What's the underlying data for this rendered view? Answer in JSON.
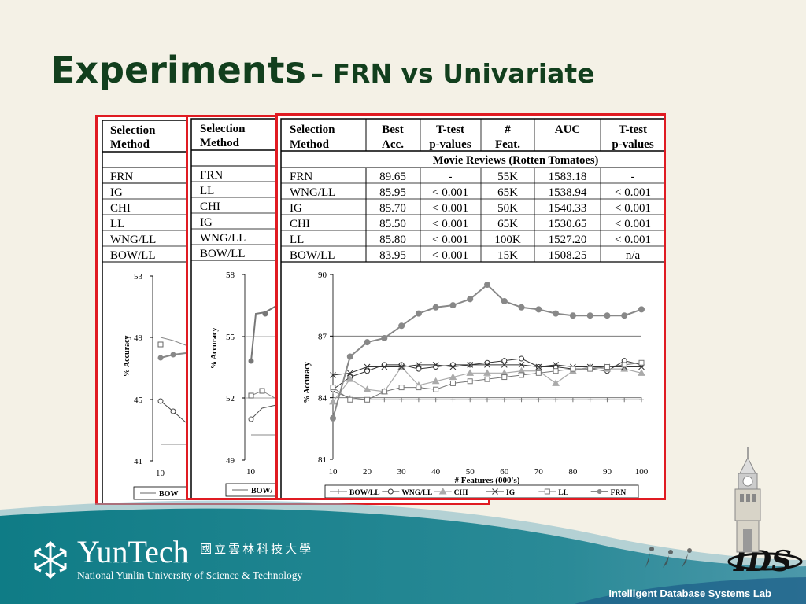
{
  "title": {
    "main": "Experiments",
    "sub": "– FRN vs Univariate"
  },
  "panel1": {
    "header": [
      "Selection",
      "Method"
    ],
    "methods": [
      "FRN",
      "IG",
      "CHI",
      "LL",
      "WNG/LL",
      "BOW/LL"
    ],
    "yticks": [
      "53",
      "49",
      "45",
      "41"
    ],
    "xtick": "10",
    "ylabel": "% Accuracy",
    "legend_first": "BOW"
  },
  "panel2": {
    "header": [
      "Selection",
      "Method"
    ],
    "methods": [
      "FRN",
      "LL",
      "CHI",
      "IG",
      "WNG/LL",
      "BOW/LL"
    ],
    "yticks": [
      "58",
      "55",
      "52",
      "49"
    ],
    "xtick": "10",
    "ylabel": "% Accuracy",
    "legend_first": "BOW/"
  },
  "panel3": {
    "columns": [
      [
        "Selection",
        "Method"
      ],
      [
        "Best",
        "Acc."
      ],
      [
        "T-test",
        "p-values"
      ],
      [
        "#",
        "Feat."
      ],
      [
        "AUC",
        ""
      ],
      [
        "T-test",
        "p-values"
      ]
    ],
    "dataset": "Movie Reviews (Rotten Tomatoes)",
    "rows": [
      [
        "FRN",
        "89.65",
        "-",
        "55K",
        "1583.18",
        "-"
      ],
      [
        "WNG/LL",
        "85.95",
        "< 0.001",
        "65K",
        "1538.94",
        "< 0.001"
      ],
      [
        "IG",
        "85.70",
        "< 0.001",
        "50K",
        "1540.33",
        "< 0.001"
      ],
      [
        "CHI",
        "85.50",
        "< 0.001",
        "65K",
        "1530.65",
        "< 0.001"
      ],
      [
        "LL",
        "85.80",
        "< 0.001",
        "100K",
        "1527.20",
        "< 0.001"
      ],
      [
        "BOW/LL",
        "83.95",
        "< 0.001",
        "15K",
        "1508.25",
        "n/a"
      ]
    ]
  },
  "chart_data": {
    "type": "line",
    "title": "",
    "xlabel": "# Features (000's)",
    "ylabel": "% Accuracy",
    "xlim": [
      10,
      100
    ],
    "ylim": [
      81,
      90
    ],
    "xticks": [
      10,
      20,
      30,
      40,
      50,
      60,
      70,
      80,
      90,
      100
    ],
    "yticks": [
      81,
      84,
      87,
      90
    ],
    "grid_y": [
      84,
      87
    ],
    "legend_position": "bottom",
    "series": [
      {
        "name": "BOW/LL",
        "marker": "plus",
        "x": [
          10,
          15,
          20,
          25,
          30,
          35,
          40,
          45,
          50,
          55,
          60,
          65,
          70,
          75,
          80,
          85,
          90,
          95,
          100
        ],
        "y": [
          84.3,
          84.0,
          83.9,
          83.9,
          83.9,
          83.9,
          83.9,
          83.9,
          83.9,
          83.9,
          83.9,
          83.9,
          83.9,
          83.9,
          83.9,
          83.9,
          83.9,
          83.9,
          83.9
        ]
      },
      {
        "name": "WNG/LL",
        "marker": "circle",
        "x": [
          10,
          15,
          20,
          25,
          30,
          35,
          40,
          45,
          50,
          55,
          60,
          65,
          70,
          75,
          80,
          85,
          90,
          95,
          100
        ],
        "y": [
          84.4,
          85.0,
          85.3,
          85.6,
          85.6,
          85.4,
          85.5,
          85.6,
          85.6,
          85.7,
          85.8,
          85.9,
          85.5,
          85.5,
          85.4,
          85.4,
          85.3,
          85.8,
          85.6
        ]
      },
      {
        "name": "CHI",
        "marker": "triangle",
        "x": [
          10,
          15,
          20,
          25,
          30,
          35,
          40,
          45,
          50,
          55,
          60,
          65,
          70,
          75,
          80,
          85,
          90,
          95,
          100
        ],
        "y": [
          83.8,
          84.9,
          84.4,
          84.3,
          85.5,
          84.6,
          84.8,
          85.0,
          85.2,
          85.2,
          85.2,
          85.3,
          85.3,
          84.7,
          85.3,
          85.5,
          85.4,
          85.4,
          85.2
        ]
      },
      {
        "name": "IG",
        "marker": "x",
        "x": [
          10,
          15,
          20,
          25,
          30,
          35,
          40,
          45,
          50,
          55,
          60,
          65,
          70,
          75,
          80,
          85,
          90,
          95,
          100
        ],
        "y": [
          85.1,
          85.2,
          85.5,
          85.5,
          85.5,
          85.6,
          85.6,
          85.5,
          85.6,
          85.6,
          85.6,
          85.6,
          85.5,
          85.6,
          85.5,
          85.5,
          85.5,
          85.5,
          85.5
        ]
      },
      {
        "name": "LL",
        "marker": "square",
        "x": [
          10,
          15,
          20,
          25,
          30,
          35,
          40,
          45,
          50,
          55,
          60,
          65,
          70,
          75,
          80,
          85,
          90,
          95,
          100
        ],
        "y": [
          84.5,
          83.9,
          83.9,
          84.3,
          84.5,
          84.5,
          84.4,
          84.7,
          84.8,
          84.9,
          85.0,
          85.1,
          85.2,
          85.3,
          85.4,
          85.4,
          85.5,
          85.6,
          85.7
        ]
      },
      {
        "name": "FRN",
        "marker": "dot",
        "x": [
          10,
          15,
          20,
          25,
          30,
          35,
          40,
          45,
          50,
          55,
          60,
          65,
          70,
          75,
          80,
          85,
          90,
          95,
          100
        ],
        "y": [
          83.0,
          86.0,
          86.7,
          86.9,
          87.5,
          88.1,
          88.4,
          88.5,
          88.8,
          89.5,
          88.7,
          88.4,
          88.3,
          88.1,
          88.0,
          88.0,
          88.0,
          88.0,
          88.3
        ]
      }
    ]
  },
  "footer": {
    "logo": "YunTech",
    "chinese_name": "國立雲林科技大學",
    "english_name": "National Yunlin University of Science & Technology",
    "lab": "Intelligent Database Systems Lab"
  },
  "colors": {
    "title": "#123f1d",
    "frame": "#e01b22",
    "footer_teal": "#0f7c86",
    "background": "#f4f1e6"
  }
}
